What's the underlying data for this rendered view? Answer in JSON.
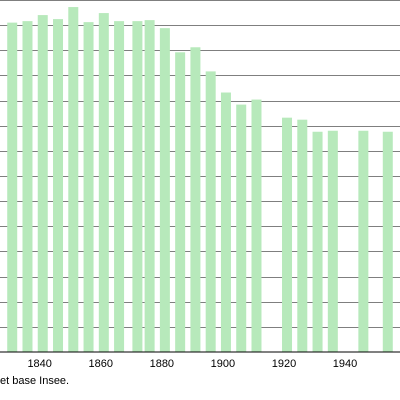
{
  "chart_data": {
    "type": "bar",
    "x": [
      1831,
      1836,
      1841,
      1846,
      1851,
      1856,
      1861,
      1866,
      1872,
      1876,
      1881,
      1886,
      1891,
      1896,
      1901,
      1906,
      1911,
      1921,
      1926,
      1931,
      1936,
      1946,
      1954
    ],
    "values": [
      3275,
      3290,
      3350,
      3310,
      3430,
      3280,
      3370,
      3290,
      3290,
      3300,
      3220,
      2980,
      3030,
      2790,
      2580,
      2460,
      2510,
      2330,
      2310,
      2190,
      2200,
      2200,
      2190
    ],
    "xticks": [
      "1840",
      "1860",
      "1880",
      "1900",
      "1920",
      "1940"
    ],
    "xlim": [
      1827,
      1958
    ],
    "ylim": [
      0,
      3500
    ],
    "grid": true,
    "bar_color": "#b7e9bb",
    "grid_color": "#000000"
  },
  "source_note": "et base Insee."
}
